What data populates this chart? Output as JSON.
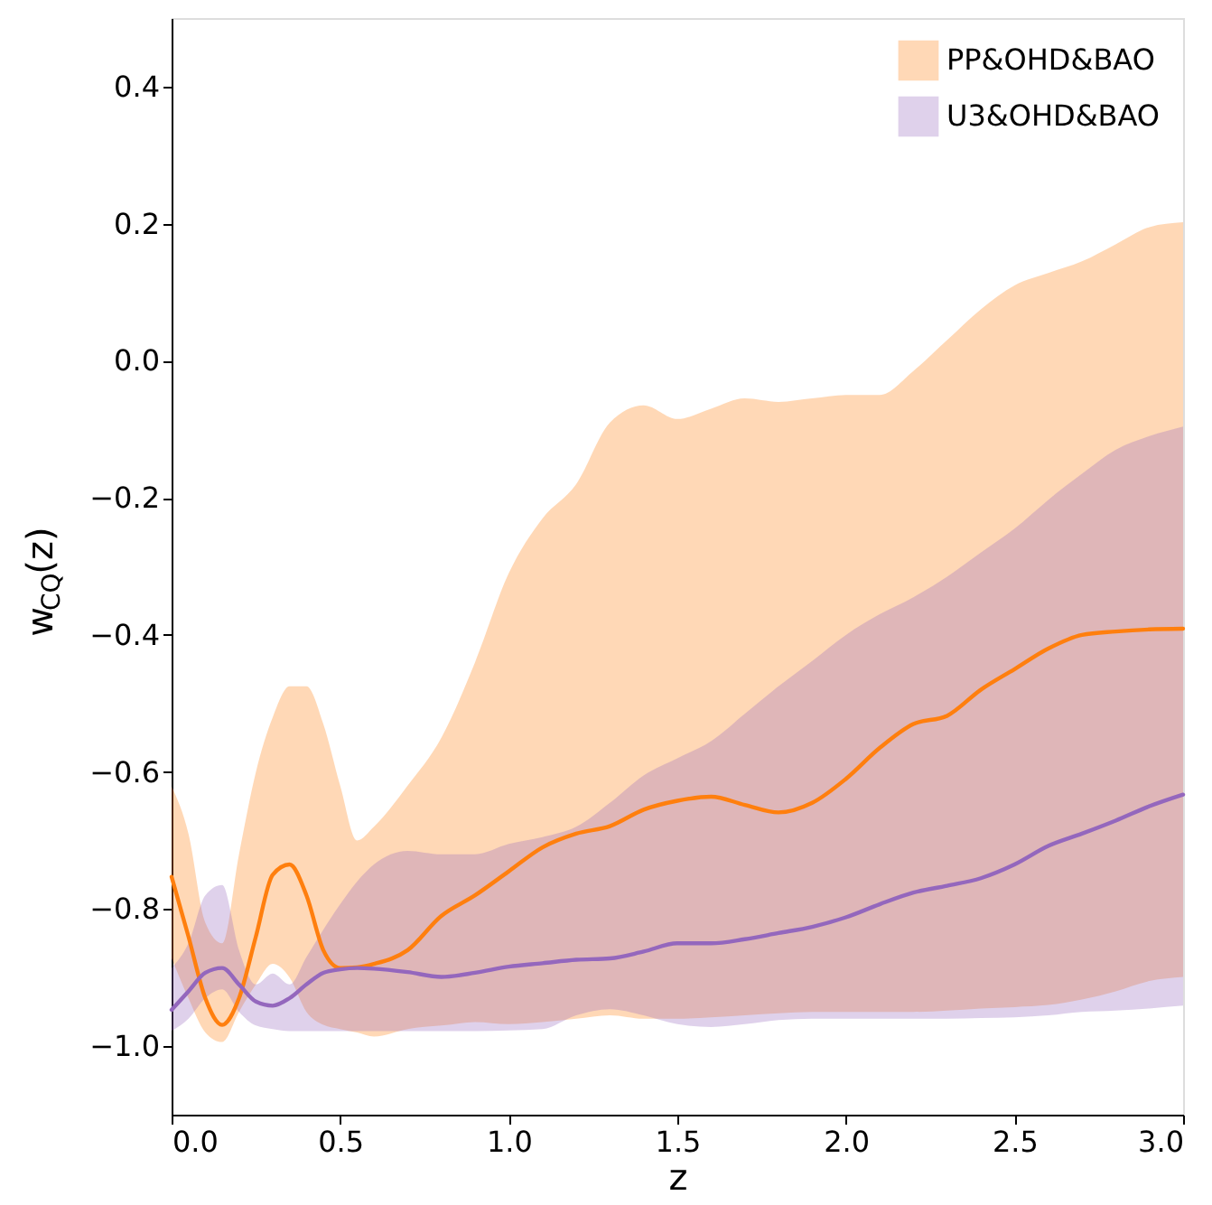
{
  "chart_data": {
    "type": "line",
    "xlabel": "z",
    "ylabel": "w$_{CQ}$(z)",
    "x": [
      0,
      0.05,
      0.1,
      0.15,
      0.2,
      0.25,
      0.3,
      0.35,
      0.4,
      0.45,
      0.5,
      0.55,
      0.6,
      0.7,
      0.8,
      0.9,
      1.0,
      1.1,
      1.2,
      1.3,
      1.4,
      1.5,
      1.6,
      1.7,
      1.8,
      1.9,
      2.0,
      2.1,
      2.2,
      2.3,
      2.4,
      2.5,
      2.6,
      2.7,
      2.8,
      2.9,
      3.0
    ],
    "series": [
      {
        "name": "PP&OHD&BAO",
        "color": "#ff7f0e",
        "values": [
          -0.753,
          -0.84,
          -0.93,
          -0.969,
          -0.93,
          -0.84,
          -0.75,
          -0.735,
          -0.78,
          -0.86,
          -0.886,
          -0.885,
          -0.88,
          -0.86,
          -0.81,
          -0.78,
          -0.745,
          -0.71,
          -0.69,
          -0.679,
          -0.655,
          -0.642,
          -0.636,
          -0.648,
          -0.659,
          -0.645,
          -0.61,
          -0.565,
          -0.53,
          -0.518,
          -0.48,
          -0.45,
          -0.42,
          -0.4,
          -0.395,
          -0.392,
          -0.391
        ],
        "upper": [
          -0.621,
          -0.69,
          -0.82,
          -0.85,
          -0.72,
          -0.6,
          -0.52,
          -0.475,
          -0.475,
          -0.53,
          -0.62,
          -0.7,
          -0.68,
          -0.62,
          -0.55,
          -0.44,
          -0.31,
          -0.23,
          -0.18,
          -0.09,
          -0.065,
          -0.085,
          -0.07,
          -0.055,
          -0.06,
          -0.055,
          -0.05,
          -0.05,
          -0.015,
          0.03,
          0.075,
          0.11,
          0.128,
          0.145,
          0.17,
          0.195,
          0.202
        ],
        "lower": [
          -0.872,
          -0.93,
          -0.98,
          -0.994,
          -0.95,
          -0.91,
          -0.88,
          -0.9,
          -0.95,
          -0.969,
          -0.975,
          -0.98,
          -0.986,
          -0.975,
          -0.97,
          -0.965,
          -0.968,
          -0.965,
          -0.96,
          -0.955,
          -0.96,
          -0.96,
          -0.958,
          -0.955,
          -0.952,
          -0.95,
          -0.95,
          -0.95,
          -0.95,
          -0.948,
          -0.945,
          -0.943,
          -0.94,
          -0.932,
          -0.92,
          -0.905,
          -0.899
        ]
      },
      {
        "name": "U3&OHD&BAO",
        "color": "#9467bd",
        "values": [
          -0.947,
          -0.92,
          -0.893,
          -0.886,
          -0.91,
          -0.935,
          -0.941,
          -0.93,
          -0.91,
          -0.893,
          -0.888,
          -0.886,
          -0.887,
          -0.892,
          -0.899,
          -0.893,
          -0.884,
          -0.879,
          -0.874,
          -0.872,
          -0.862,
          -0.85,
          -0.85,
          -0.844,
          -0.835,
          -0.826,
          -0.812,
          -0.793,
          -0.776,
          -0.766,
          -0.755,
          -0.735,
          -0.708,
          -0.69,
          -0.671,
          -0.65,
          -0.633
        ],
        "upper": [
          -0.886,
          -0.85,
          -0.78,
          -0.765,
          -0.86,
          -0.91,
          -0.894,
          -0.91,
          -0.87,
          -0.83,
          -0.793,
          -0.76,
          -0.735,
          -0.715,
          -0.72,
          -0.72,
          -0.705,
          -0.695,
          -0.68,
          -0.645,
          -0.605,
          -0.58,
          -0.555,
          -0.515,
          -0.475,
          -0.438,
          -0.4,
          -0.37,
          -0.345,
          -0.315,
          -0.28,
          -0.245,
          -0.203,
          -0.165,
          -0.13,
          -0.11,
          -0.096
        ],
        "lower": [
          -0.978,
          -0.96,
          -0.93,
          -0.917,
          -0.95,
          -0.97,
          -0.975,
          -0.978,
          -0.978,
          -0.978,
          -0.978,
          -0.978,
          -0.978,
          -0.978,
          -0.978,
          -0.978,
          -0.977,
          -0.975,
          -0.955,
          -0.946,
          -0.955,
          -0.968,
          -0.972,
          -0.968,
          -0.962,
          -0.96,
          -0.96,
          -0.96,
          -0.96,
          -0.96,
          -0.959,
          -0.958,
          -0.955,
          -0.95,
          -0.948,
          -0.945,
          -0.941
        ]
      }
    ],
    "xlim": [
      0,
      3.0
    ],
    "ylim": [
      -1.1,
      0.5
    ],
    "xticks": [
      {
        "value": 0,
        "label": "0.0"
      },
      0.5,
      {
        "value": 1,
        "label": "1.0"
      },
      1.5,
      {
        "value": 2,
        "label": "2.0"
      },
      2.5,
      {
        "value": 3,
        "label": "3.0"
      }
    ],
    "yticks": [
      {
        "value": -1.0,
        "label": "−1.0"
      },
      {
        "value": -0.8,
        "label": "−0.8"
      },
      {
        "value": -0.6,
        "label": "−0.6"
      },
      {
        "value": -0.4,
        "label": "−0.4"
      },
      {
        "value": -0.2,
        "label": "−0.2"
      },
      {
        "value": 0,
        "label": "0.0"
      },
      0.2,
      0.4
    ],
    "legend": "top right",
    "grid": false
  }
}
